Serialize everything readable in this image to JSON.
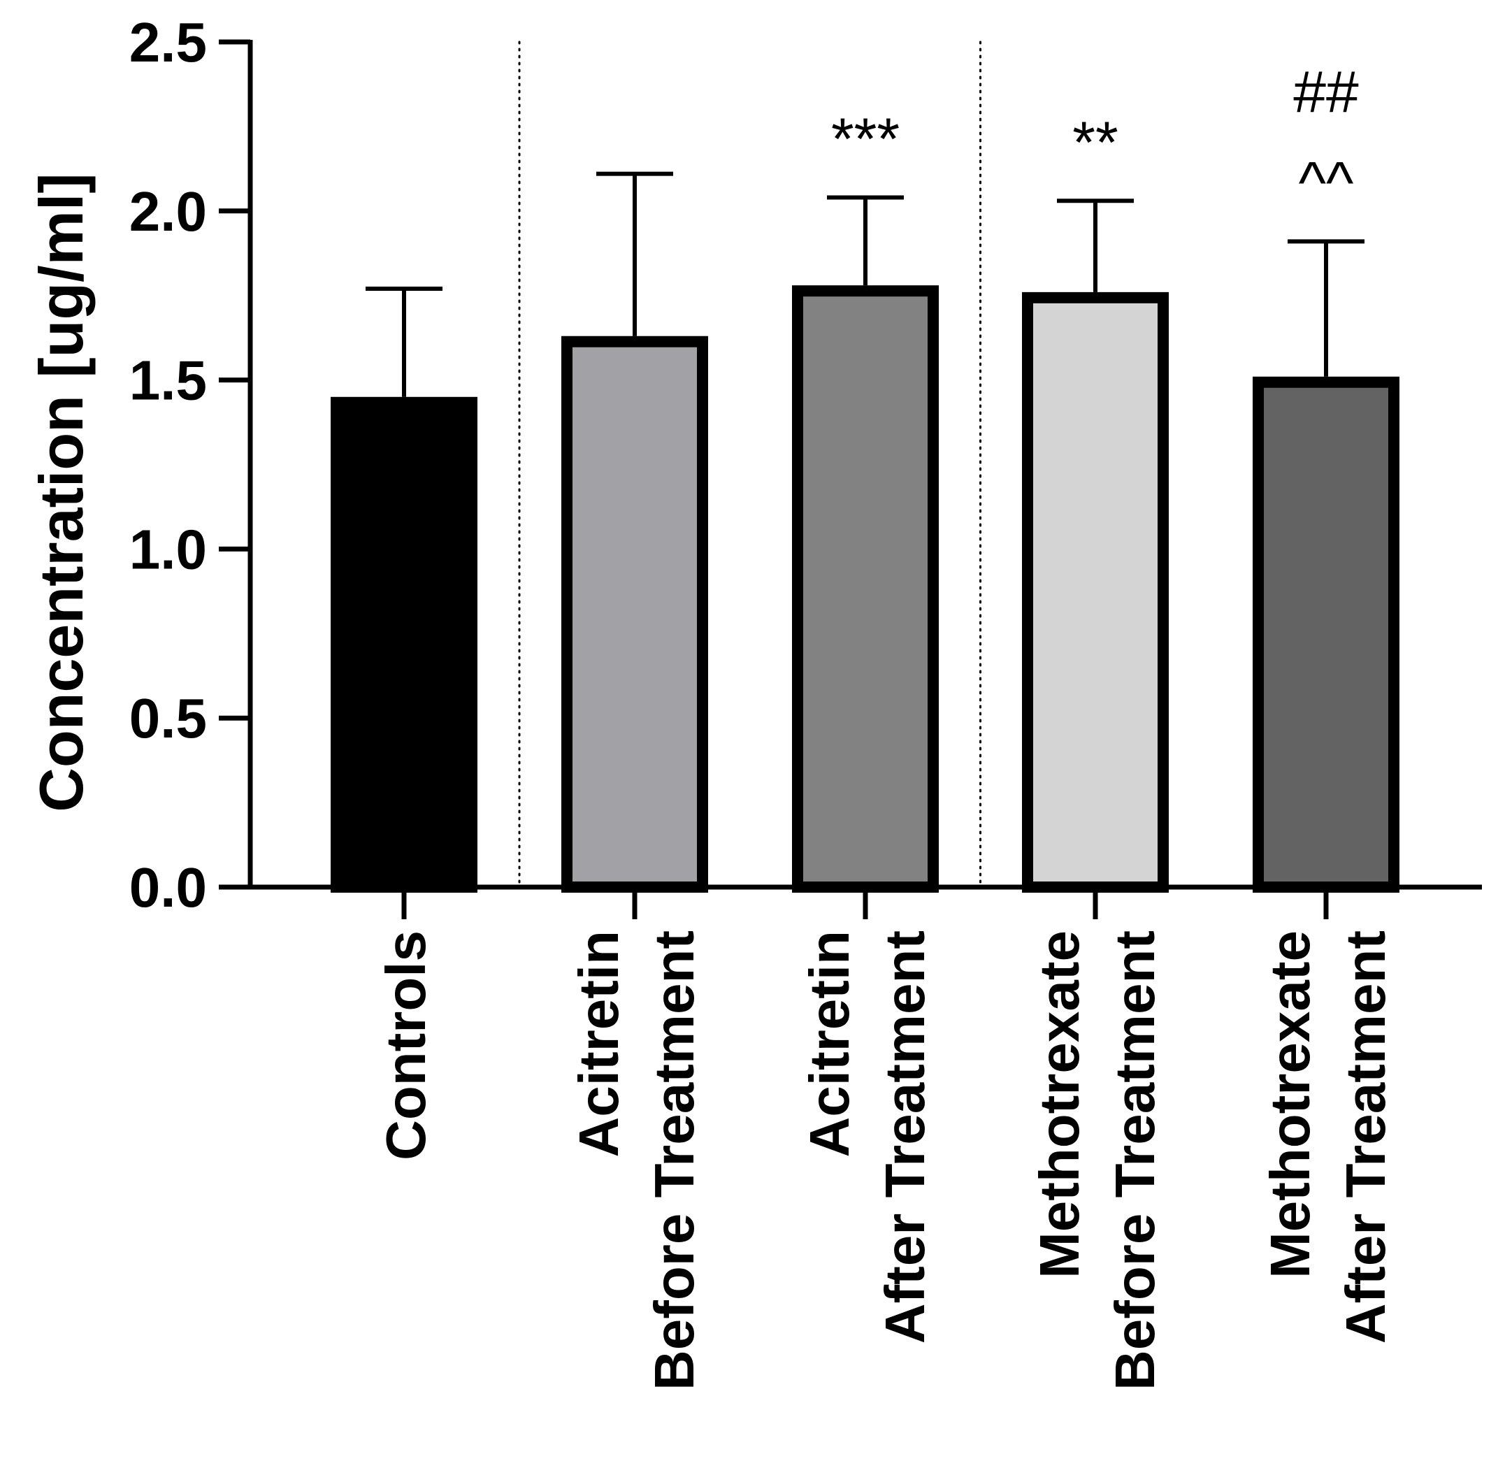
{
  "chart_data": {
    "type": "bar",
    "title": "",
    "xlabel": "",
    "ylabel": "Concentration [ug/ml]",
    "ylim": [
      0,
      2.5
    ],
    "yticks": [
      0.0,
      0.5,
      1.0,
      1.5,
      2.0,
      2.5
    ],
    "ytick_labels": [
      "0.0",
      "0.5",
      "1.0",
      "1.5",
      "2.0",
      "2.5"
    ],
    "grid": false,
    "categories": [
      [
        "Controls"
      ],
      [
        "Acitretin",
        "Before Treatment"
      ],
      [
        "Acitretin",
        "After Treatment"
      ],
      [
        "Methotrexate",
        "Before Treatment"
      ],
      [
        "Methotrexate",
        "After Treatment"
      ]
    ],
    "values": [
      1.45,
      1.63,
      1.78,
      1.76,
      1.51
    ],
    "error_upper": [
      1.77,
      2.11,
      2.04,
      2.03,
      1.91
    ],
    "colors": [
      "#000000",
      "#a1a1a6",
      "#828282",
      "#d4d4d4",
      "#636363"
    ],
    "group_separators_after": [
      0,
      2
    ],
    "annotations": [
      {
        "category_index": 2,
        "lines": [
          "***"
        ]
      },
      {
        "category_index": 3,
        "lines": [
          "**"
        ]
      },
      {
        "category_index": 4,
        "lines": [
          "##",
          "^^"
        ]
      }
    ]
  }
}
